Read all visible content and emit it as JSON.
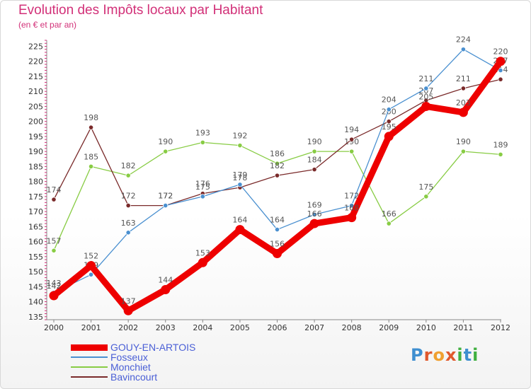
{
  "header": {
    "title": "Evolution des Impôts locaux par Habitant",
    "subtitle": "(en € et par an)"
  },
  "logo": {
    "letters": [
      "P",
      "r",
      "o",
      "x",
      "i",
      "t",
      "i"
    ],
    "colors": [
      "#3f8fd0",
      "#e0582c",
      "#f0a030",
      "#e0582c",
      "#40b040",
      "#3f8fd0",
      "#40b040"
    ]
  },
  "chart_data": {
    "type": "line",
    "title": "Evolution des Impôts locaux par Habitant",
    "subtitle": "(en € et par an)",
    "x": [
      "2000",
      "2001",
      "2002",
      "2003",
      "2004",
      "2005",
      "2006",
      "2007",
      "2008",
      "2009",
      "2010",
      "2011",
      "2012"
    ],
    "ylim": [
      134,
      227
    ],
    "yticks": [
      135,
      140,
      145,
      150,
      155,
      160,
      165,
      170,
      175,
      180,
      185,
      190,
      195,
      200,
      205,
      210,
      215,
      220,
      225
    ],
    "grid": false,
    "legend_position": "bottom-left",
    "series": [
      {
        "name": "Monchiet",
        "color": "#88cc44",
        "values": [
          157,
          185,
          182,
          190,
          193,
          192,
          186,
          190,
          190,
          166,
          175,
          190,
          189
        ],
        "labels": [
          "157",
          "185",
          "182",
          "190",
          "193",
          "192",
          "186",
          "190",
          "190",
          "166",
          "175",
          "190",
          "189"
        ]
      },
      {
        "name": "Bavincourt",
        "color": "#7a2a2a",
        "values": [
          174,
          198,
          172,
          172,
          176,
          178,
          182,
          184,
          194,
          200,
          207,
          211,
          214
        ],
        "labels": [
          "174",
          "198",
          "172",
          "172",
          "176",
          "178",
          "182",
          "184",
          "194",
          "200",
          "207",
          "211",
          "214"
        ]
      },
      {
        "name": "Fosseux",
        "color": "#4a90d0",
        "values": [
          143,
          149,
          163,
          172,
          175,
          179,
          164,
          169,
          172,
          204,
          211,
          224,
          217
        ],
        "labels": [
          "143",
          "149",
          "163",
          "172",
          "175",
          "179",
          "164",
          "169",
          "172",
          "204",
          "211",
          "224",
          "217"
        ]
      },
      {
        "name": "GOUY-EN-ARTOIS",
        "color": "#ee0000",
        "values": [
          142,
          152,
          137,
          144,
          153,
          164,
          156,
          166,
          168,
          195,
          205,
          203,
          220
        ],
        "labels": [
          "142",
          "152",
          "137",
          "144",
          "153",
          "164",
          "156",
          "166",
          "168",
          "195",
          "205",
          "203",
          "220"
        ]
      }
    ]
  },
  "legend": [
    {
      "name": "GOUY-EN-ARTOIS",
      "color": "#ee0000",
      "thick": true
    },
    {
      "name": "Fosseux",
      "color": "#4a90d0",
      "thick": false
    },
    {
      "name": "Monchiet",
      "color": "#88cc44",
      "thick": false
    },
    {
      "name": "Bavincourt",
      "color": "#7a2a2a",
      "thick": false
    }
  ]
}
